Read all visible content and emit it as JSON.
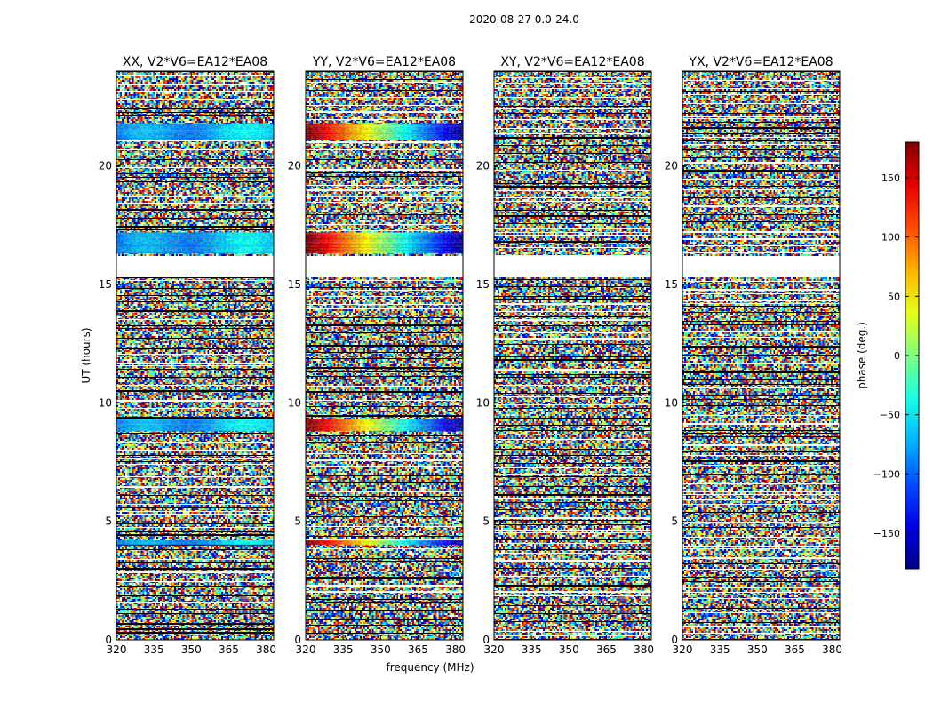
{
  "figure": {
    "suptitle": "2020-08-27 0.0-24.0",
    "xlabel": "frequency (MHz)",
    "ylabel": "UT (hours)",
    "colorbar_label": "phase (deg.)"
  },
  "chart_data": {
    "type": "heatmap",
    "colormap": "jet",
    "xlim": [
      320,
      383
    ],
    "ylim": [
      0,
      24
    ],
    "xticks": [
      320,
      335,
      350,
      365,
      380
    ],
    "yticks": [
      0,
      5,
      10,
      15,
      20
    ],
    "clim": [
      -180,
      180
    ],
    "colorbar_ticks": [
      150,
      100,
      50,
      0,
      -50,
      -100,
      -150
    ],
    "colorbar_tick_labels": [
      "150",
      "100",
      "50",
      "0",
      "−50",
      "−100",
      "−150"
    ],
    "blank_time_ranges_hours": [
      [
        15.3,
        16.2
      ]
    ],
    "panels": [
      {
        "title": "XX, V2*V6=EA12*EA08",
        "coherent_bands_hours": [
          [
            21.1,
            21.8
          ],
          [
            16.3,
            17.2
          ],
          [
            8.8,
            9.3
          ],
          [
            4.0,
            4.2
          ]
        ]
      },
      {
        "title": "YY, V2*V6=EA12*EA08",
        "coherent_bands_hours": [
          [
            21.1,
            21.8
          ],
          [
            16.3,
            17.2
          ],
          [
            8.8,
            9.3
          ],
          [
            4.0,
            4.2
          ]
        ]
      },
      {
        "title": "XY, V2*V6=EA12*EA08",
        "coherent_bands_hours": []
      },
      {
        "title": "YX, V2*V6=EA12*EA08",
        "coherent_bands_hours": []
      }
    ]
  }
}
